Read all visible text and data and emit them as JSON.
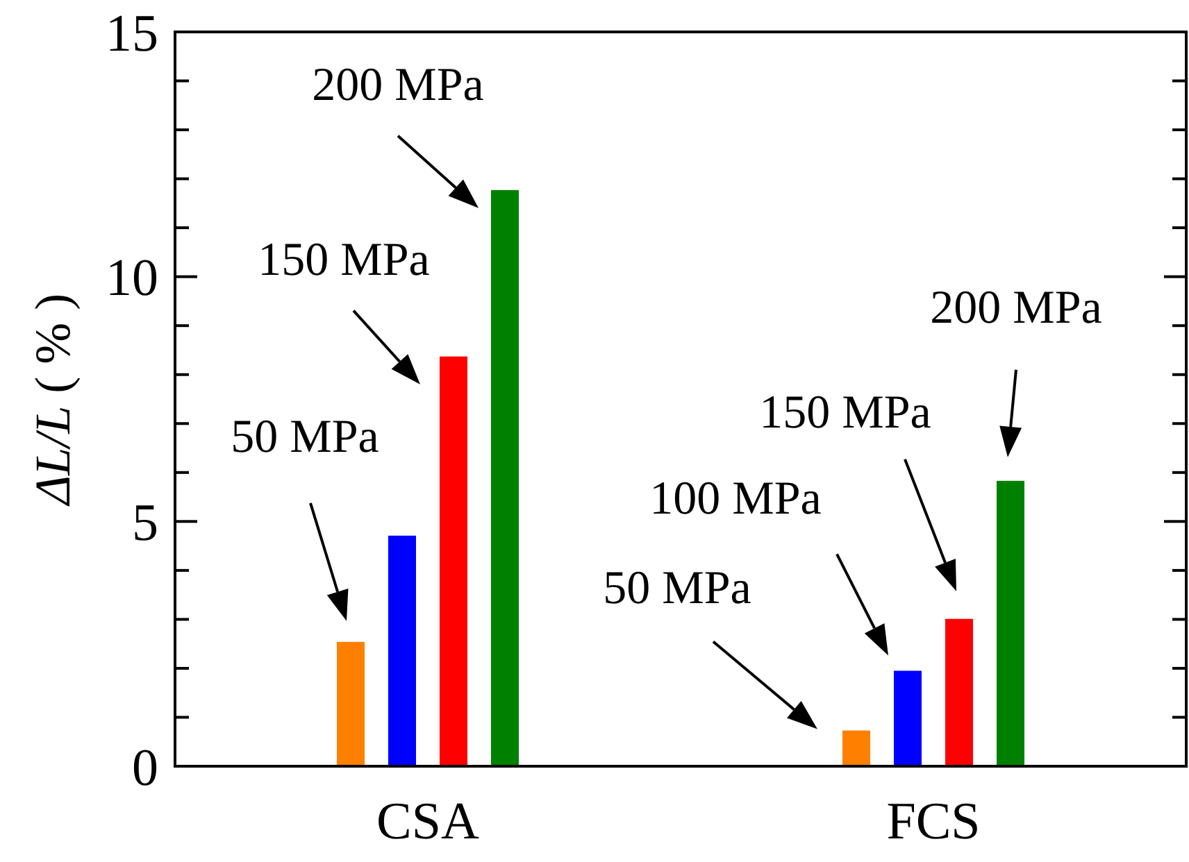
{
  "chart_data": {
    "type": "bar",
    "ylabel": "ΔL/L ( % )",
    "categories": [
      "CSA",
      "FCS"
    ],
    "series": [
      {
        "color": "#ff8000",
        "values": [
          2.54,
          0.73
        ]
      },
      {
        "color": "#0000ff",
        "values": [
          4.71,
          1.95
        ]
      },
      {
        "color": "#ff0000",
        "values": [
          8.37,
          3.01
        ]
      },
      {
        "color": "#008000",
        "values": [
          11.77,
          5.83
        ]
      }
    ],
    "ylim": [
      0,
      15
    ],
    "yticks": [
      0,
      {
        "value": 1,
        "label": null
      },
      {
        "value": 2,
        "label": null
      },
      {
        "value": 3,
        "label": null
      },
      {
        "value": 4,
        "label": null
      },
      5,
      {
        "value": 6,
        "label": null
      },
      {
        "value": 7,
        "label": null
      },
      {
        "value": 8,
        "label": null
      },
      {
        "value": 9,
        "label": null
      },
      10,
      {
        "value": 11,
        "label": null
      },
      {
        "value": 12,
        "label": null
      },
      {
        "value": 13,
        "label": null
      },
      {
        "value": 14,
        "label": null
      },
      15
    ],
    "annotations": [
      "50 MPa",
      "150 MPa",
      "200 MPa",
      "50 MPa",
      "100 MPa",
      "150 MPa",
      "200 MPa"
    ]
  }
}
